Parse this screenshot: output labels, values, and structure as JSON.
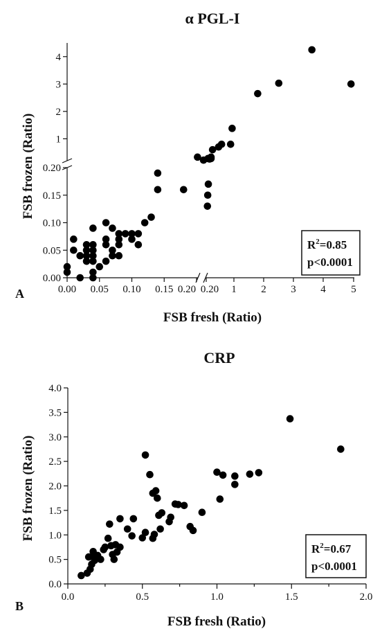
{
  "chart_data": [
    {
      "panel": "A",
      "type": "scatter",
      "title": "α PGL-I",
      "xlabel": "FSB fresh (Ratio)",
      "ylabel": "FSB frozen (Ratio)",
      "x_broken_axis": true,
      "y_broken_axis": true,
      "x_segments": [
        {
          "range": [
            0,
            0.2
          ],
          "ticks": [
            "0.00",
            "0.05",
            "0.10",
            "0.15",
            "0.20"
          ]
        },
        {
          "range": [
            0.2,
            5
          ],
          "ticks": [
            "0.20",
            "1",
            "2",
            "3",
            "4",
            "5"
          ]
        }
      ],
      "y_segments": [
        {
          "range": [
            0,
            0.2
          ],
          "ticks": [
            "0.00",
            "0.05",
            "0.10",
            "0.15",
            "0.20"
          ]
        },
        {
          "range": [
            0.2,
            4.5
          ],
          "ticks": [
            "1",
            "2",
            "3",
            "4"
          ]
        }
      ],
      "stats": {
        "r2_label": "R",
        "r2_sup": "2",
        "r2_value": "=0.85",
        "p": "p<0.0001"
      },
      "points": [
        [
          0.0,
          0.01
        ],
        [
          0.0,
          0.02
        ],
        [
          0.01,
          0.05
        ],
        [
          0.01,
          0.07
        ],
        [
          0.02,
          0.04
        ],
        [
          0.02,
          0.0
        ],
        [
          0.03,
          0.03
        ],
        [
          0.03,
          0.05
        ],
        [
          0.03,
          0.06
        ],
        [
          0.03,
          0.04
        ],
        [
          0.04,
          0.03
        ],
        [
          0.04,
          0.05
        ],
        [
          0.04,
          0.06
        ],
        [
          0.04,
          0.09
        ],
        [
          0.04,
          0.01
        ],
        [
          0.04,
          0.0
        ],
        [
          0.04,
          0.04
        ],
        [
          0.05,
          0.02
        ],
        [
          0.06,
          0.03
        ],
        [
          0.06,
          0.06
        ],
        [
          0.06,
          0.07
        ],
        [
          0.06,
          0.1
        ],
        [
          0.07,
          0.04
        ],
        [
          0.07,
          0.05
        ],
        [
          0.07,
          0.09
        ],
        [
          0.08,
          0.06
        ],
        [
          0.08,
          0.07
        ],
        [
          0.08,
          0.04
        ],
        [
          0.08,
          0.08
        ],
        [
          0.09,
          0.08
        ],
        [
          0.1,
          0.07
        ],
        [
          0.1,
          0.08
        ],
        [
          0.11,
          0.06
        ],
        [
          0.11,
          0.08
        ],
        [
          0.12,
          0.1
        ],
        [
          0.13,
          0.11
        ],
        [
          0.14,
          0.16
        ],
        [
          0.14,
          0.19
        ],
        [
          0.18,
          0.16
        ],
        [
          0.4,
          0.33
        ],
        [
          0.6,
          0.22
        ],
        [
          0.75,
          0.28
        ],
        [
          0.73,
          0.13
        ],
        [
          0.74,
          0.15
        ],
        [
          0.76,
          0.17
        ],
        [
          0.8,
          0.26
        ],
        [
          0.85,
          0.28
        ],
        [
          0.85,
          0.33
        ],
        [
          0.9,
          0.6
        ],
        [
          1.1,
          0.7
        ],
        [
          1.2,
          0.8
        ],
        [
          1.5,
          0.8
        ],
        [
          1.55,
          1.38
        ],
        [
          2.4,
          2.65
        ],
        [
          3.1,
          3.03
        ],
        [
          4.2,
          4.25
        ],
        [
          5.5,
          3.0
        ]
      ]
    },
    {
      "panel": "B",
      "type": "scatter",
      "title": "CRP",
      "xlabel": "FSB fresh (Ratio)",
      "ylabel": "FSB frozen (Ratio)",
      "xlim": [
        0,
        2.0
      ],
      "ylim": [
        0,
        4.0
      ],
      "x_ticks": [
        "0.0",
        "0.5",
        "1.0",
        "1.5",
        "2.0"
      ],
      "y_ticks": [
        "0.0",
        "0.5",
        "1.0",
        "1.5",
        "2.0",
        "2.5",
        "3.0",
        "3.5",
        "4.0"
      ],
      "stats": {
        "r2_label": "R",
        "r2_sup": "2",
        "r2_value": "=0.67",
        "p": "p<0.0001"
      },
      "points": [
        [
          0.09,
          0.17
        ],
        [
          0.13,
          0.22
        ],
        [
          0.14,
          0.55
        ],
        [
          0.15,
          0.3
        ],
        [
          0.16,
          0.4
        ],
        [
          0.17,
          0.55
        ],
        [
          0.17,
          0.66
        ],
        [
          0.18,
          0.48
        ],
        [
          0.2,
          0.58
        ],
        [
          0.22,
          0.5
        ],
        [
          0.24,
          0.7
        ],
        [
          0.25,
          0.75
        ],
        [
          0.27,
          0.93
        ],
        [
          0.28,
          1.22
        ],
        [
          0.29,
          0.78
        ],
        [
          0.3,
          0.6
        ],
        [
          0.31,
          0.5
        ],
        [
          0.32,
          0.8
        ],
        [
          0.33,
          0.65
        ],
        [
          0.35,
          0.75
        ],
        [
          0.35,
          1.33
        ],
        [
          0.4,
          1.12
        ],
        [
          0.43,
          0.98
        ],
        [
          0.44,
          1.33
        ],
        [
          0.5,
          0.94
        ],
        [
          0.52,
          1.05
        ],
        [
          0.52,
          2.63
        ],
        [
          0.55,
          2.23
        ],
        [
          0.57,
          0.93
        ],
        [
          0.57,
          1.85
        ],
        [
          0.58,
          1.01
        ],
        [
          0.59,
          1.9
        ],
        [
          0.6,
          1.75
        ],
        [
          0.61,
          1.4
        ],
        [
          0.62,
          1.12
        ],
        [
          0.63,
          1.45
        ],
        [
          0.68,
          1.27
        ],
        [
          0.69,
          1.36
        ],
        [
          0.72,
          1.63
        ],
        [
          0.74,
          1.62
        ],
        [
          0.78,
          1.6
        ],
        [
          0.82,
          1.17
        ],
        [
          0.84,
          1.09
        ],
        [
          0.9,
          1.46
        ],
        [
          1.0,
          2.28
        ],
        [
          1.02,
          1.73
        ],
        [
          1.04,
          2.22
        ],
        [
          1.12,
          2.2
        ],
        [
          1.12,
          2.03
        ],
        [
          1.22,
          2.24
        ],
        [
          1.28,
          2.27
        ],
        [
          1.49,
          3.37
        ],
        [
          1.83,
          2.75
        ]
      ]
    }
  ],
  "panel_labels": {
    "a": "A",
    "b": "B"
  }
}
